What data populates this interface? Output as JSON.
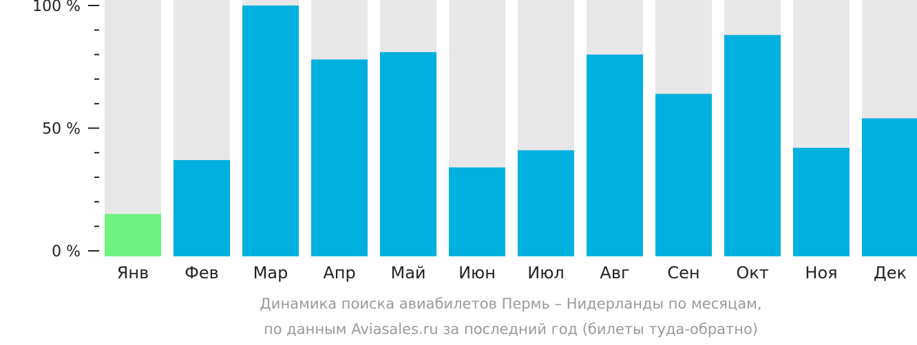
{
  "chart_data": {
    "type": "bar",
    "categories": [
      "Янв",
      "Фев",
      "Мар",
      "Апр",
      "Май",
      "Июн",
      "Июл",
      "Авг",
      "Сен",
      "Окт",
      "Ноя",
      "Дек"
    ],
    "values": [
      15,
      37,
      100,
      78,
      81,
      34,
      41,
      80,
      64,
      88,
      42,
      54
    ],
    "y_ticks": [
      "0 %",
      "50 %",
      "100 %"
    ],
    "ylim": [
      0,
      100
    ],
    "colors": {
      "bar": "#00b0de",
      "highlight": "#6ef284",
      "background_bar": "#e8e8e8",
      "axis": "#222222"
    },
    "highlight_index": 0
  },
  "caption": {
    "line1": "Динамика поиска авиабилетов Пермь – Нидерланды по месяцам,",
    "line2": "по данным Aviasales.ru за последний год (билеты туда-обратно)"
  }
}
